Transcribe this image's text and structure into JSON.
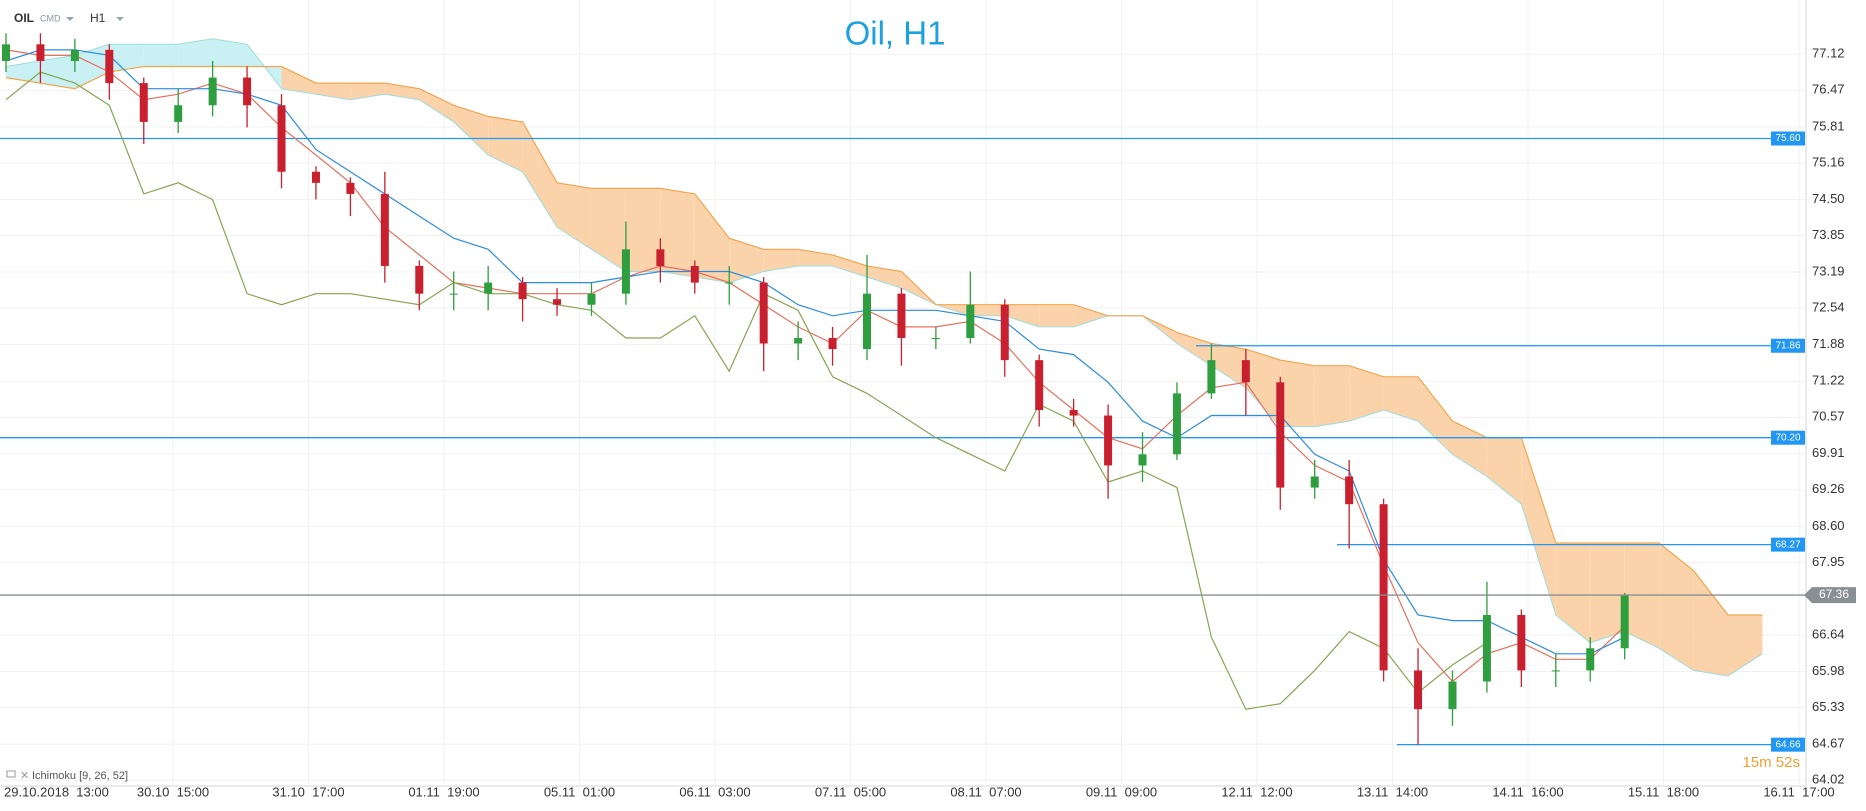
{
  "toolbar": {
    "symbol": "OIL",
    "group": "CMD",
    "timeframe": "H1"
  },
  "chart_data": {
    "type": "candlestick",
    "title": "Oil, H1",
    "indicator": "Ichimoku [9, 26, 52]",
    "countdown": "15m 52s",
    "x_labels": [
      "29.10.2018  13:00",
      "30.10  15:00",
      "31.10  17:00",
      "01.11  19:00",
      "05.11  01:00",
      "06.11  03:00",
      "07.11  05:00",
      "08.11  07:00",
      "09.11  09:00",
      "12.11  12:00",
      "13.11  14:00",
      "14.11  16:00",
      "15.11  18:00",
      "16.11  17:00"
    ],
    "ylim": [
      63.95,
      78.1
    ],
    "yticks": [
      77.12,
      76.47,
      75.81,
      75.16,
      {
        "value": 74.5,
        "label": "74.50"
      },
      73.85,
      73.19,
      72.54,
      71.88,
      71.22,
      70.57,
      69.91,
      69.26,
      {
        "value": 68.6,
        "label": "68.60"
      },
      67.95,
      66.64,
      65.98,
      65.33,
      64.67,
      64.02
    ],
    "grid": true,
    "levels": [
      {
        "value": 75.6,
        "label": "75.60"
      },
      71.86,
      {
        "value": 70.2,
        "label": "70.20"
      },
      68.27,
      64.66
    ],
    "level_color": "#2196f3",
    "current_price": 67.36,
    "current_color": "#8a8f94",
    "candles": {
      "up_color": "#2e9e3e",
      "down_color": "#c9202f",
      "open": [
        77.0,
        77.3,
        77.0,
        77.2,
        76.6,
        75.9,
        76.2,
        76.7,
        76.2,
        75.0,
        74.8,
        74.6,
        73.3,
        72.8,
        72.8,
        73.0,
        72.7,
        72.6,
        72.8,
        73.6,
        73.3,
        73.0,
        73.0,
        71.9,
        72.0,
        71.8,
        72.8,
        72.0,
        72.0,
        72.6,
        71.6,
        70.7,
        70.6,
        69.7,
        69.9,
        71.0,
        71.6,
        71.2,
        69.3,
        69.5,
        69.0,
        66.0,
        65.3,
        65.8,
        67.0,
        66.0,
        66.0,
        66.4
      ],
      "high": [
        77.5,
        77.5,
        77.4,
        77.3,
        76.7,
        76.5,
        77.0,
        76.9,
        76.4,
        75.1,
        74.9,
        75.0,
        73.4,
        73.2,
        73.3,
        73.1,
        72.9,
        73.0,
        74.1,
        73.8,
        73.4,
        73.3,
        73.1,
        72.3,
        72.2,
        73.5,
        72.9,
        72.2,
        73.2,
        72.7,
        71.7,
        70.9,
        70.8,
        70.3,
        71.2,
        71.9,
        71.8,
        71.3,
        69.8,
        69.8,
        69.1,
        66.4,
        66.0,
        67.6,
        67.1,
        66.3,
        66.6,
        67.4
      ],
      "low": [
        76.8,
        76.6,
        76.8,
        76.3,
        75.5,
        75.7,
        76.0,
        75.8,
        74.7,
        74.5,
        74.2,
        73.0,
        72.5,
        72.5,
        72.5,
        72.3,
        72.4,
        72.4,
        72.6,
        73.0,
        72.8,
        72.6,
        71.4,
        71.6,
        71.5,
        71.6,
        71.5,
        71.8,
        71.9,
        71.3,
        70.4,
        70.4,
        69.1,
        69.4,
        69.8,
        70.9,
        70.6,
        68.9,
        69.1,
        68.2,
        65.8,
        64.66,
        65.0,
        65.6,
        65.7,
        65.7,
        65.8,
        66.2
      ],
      "close": [
        77.3,
        77.0,
        77.2,
        76.6,
        75.9,
        76.2,
        76.7,
        76.2,
        75.0,
        74.8,
        74.6,
        73.3,
        72.8,
        72.8,
        73.0,
        72.7,
        72.6,
        72.8,
        73.6,
        73.3,
        73.0,
        73.0,
        71.9,
        72.0,
        71.8,
        72.8,
        72.0,
        72.0,
        72.6,
        71.6,
        70.7,
        70.6,
        69.7,
        69.9,
        71.0,
        71.6,
        71.2,
        69.3,
        69.5,
        69.0,
        66.0,
        65.3,
        65.8,
        67.0,
        66.0,
        66.0,
        66.4,
        67.36
      ]
    },
    "series": [
      {
        "color": "#e8705f",
        "values": [
          77.2,
          77.1,
          77.1,
          76.8,
          76.3,
          76.4,
          76.6,
          76.4,
          75.8,
          75.3,
          74.8,
          74.0,
          73.5,
          73.0,
          72.9,
          72.8,
          72.8,
          72.8,
          73.1,
          73.3,
          73.2,
          73.0,
          72.6,
          72.2,
          71.9,
          72.5,
          72.2,
          72.2,
          72.3,
          71.9,
          71.2,
          70.7,
          70.2,
          70.0,
          70.6,
          71.1,
          71.2,
          70.3,
          69.7,
          69.4,
          67.9,
          66.5,
          65.8,
          66.3,
          66.5,
          66.2,
          66.2,
          66.8
        ]
      },
      {
        "color": "#2b8de0",
        "values": [
          77.0,
          77.2,
          77.2,
          77.1,
          76.5,
          76.5,
          76.5,
          76.4,
          76.2,
          75.4,
          75.0,
          74.6,
          74.2,
          73.8,
          73.6,
          73.0,
          73.0,
          73.0,
          73.1,
          73.2,
          73.2,
          73.2,
          73.0,
          72.6,
          72.4,
          72.5,
          72.5,
          72.5,
          72.4,
          72.3,
          71.8,
          71.7,
          71.2,
          70.5,
          70.2,
          70.6,
          70.6,
          70.6,
          69.9,
          69.6,
          68.0,
          67.0,
          66.9,
          66.9,
          66.6,
          66.3,
          66.3,
          66.6
        ]
      },
      {
        "color": "#85a650",
        "values": [
          76.3,
          76.8,
          76.6,
          76.2,
          74.6,
          74.8,
          74.5,
          72.8,
          72.6,
          72.8,
          72.8,
          72.7,
          72.6,
          73.0,
          72.8,
          72.8,
          72.6,
          72.5,
          72.0,
          72.0,
          72.4,
          71.4,
          72.8,
          72.5,
          71.3,
          71.0,
          70.6,
          70.2,
          69.9,
          69.6,
          70.8,
          70.5,
          69.4,
          69.6,
          69.3,
          66.6,
          65.3,
          65.4,
          66.0,
          66.7,
          66.4,
          65.6,
          66.1,
          66.5,
          null,
          null,
          null,
          null
        ]
      }
    ],
    "cloud": {
      "bull_fill": "#c9f0f3",
      "bear_fill": "#fbd3ab",
      "span_a": {
        "color": "#9fdcdc",
        "values": [
          76.9,
          77.0,
          77.1,
          77.3,
          77.3,
          77.3,
          77.4,
          77.3,
          76.5,
          76.4,
          76.3,
          76.4,
          76.3,
          75.9,
          75.3,
          75.0,
          74.0,
          73.6,
          73.2,
          73.2,
          73.1,
          73.0,
          73.2,
          73.3,
          73.3,
          73.1,
          72.9,
          72.6,
          72.4,
          72.4,
          72.2,
          72.2,
          72.4,
          72.4,
          71.9,
          71.5,
          71.1,
          70.4,
          70.4,
          70.5,
          70.7,
          70.5,
          69.9,
          69.5,
          69.0,
          67.0,
          66.5,
          66.7,
          66.4,
          66.0,
          65.9,
          66.3
        ]
      },
      "span_b": {
        "color": "#f3a64f",
        "values": [
          76.7,
          76.6,
          76.5,
          76.8,
          76.9,
          76.9,
          76.9,
          76.9,
          76.9,
          76.6,
          76.6,
          76.6,
          76.5,
          76.2,
          76.0,
          75.9,
          74.8,
          74.7,
          74.7,
          74.7,
          74.6,
          73.8,
          73.6,
          73.6,
          73.5,
          73.3,
          73.2,
          72.6,
          72.6,
          72.6,
          72.6,
          72.6,
          72.4,
          72.4,
          72.1,
          71.9,
          71.8,
          71.6,
          71.5,
          71.5,
          71.3,
          71.3,
          70.5,
          70.2,
          70.2,
          68.3,
          68.3,
          68.3,
          68.3,
          67.8,
          67.0,
          67.0
        ]
      }
    }
  }
}
